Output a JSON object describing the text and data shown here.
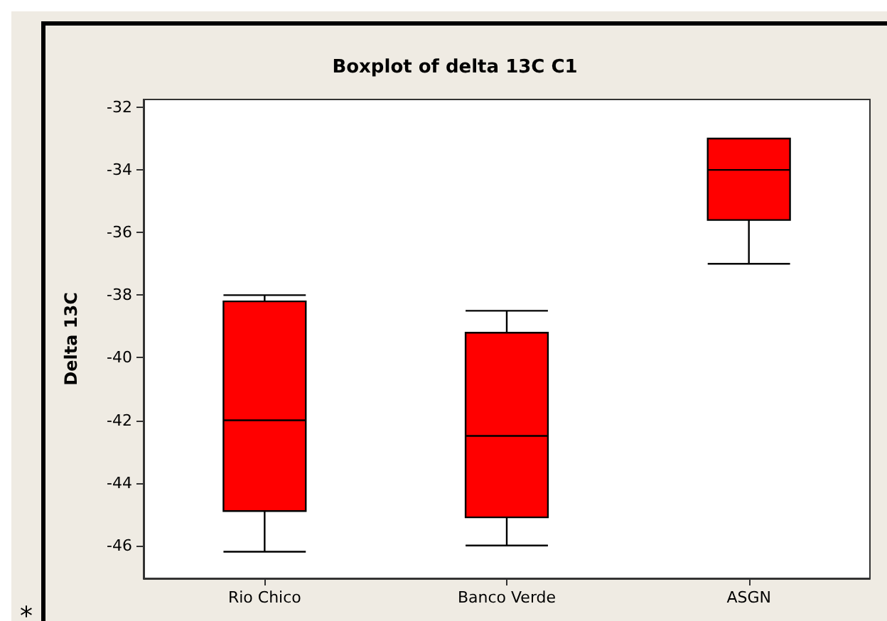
{
  "chart_data": {
    "type": "box",
    "title": "Boxplot of delta 13C C1",
    "ylabel": "Delta 13C",
    "categories": [
      "Rio Chico",
      "Banco Verde",
      "ASGN"
    ],
    "color": "#ff0000",
    "boxes": [
      {
        "low": -46.2,
        "q1": -44.9,
        "median": -42,
        "q3": -38.2,
        "high": -38
      },
      {
        "low": -46,
        "q1": -45.1,
        "median": -42.5,
        "q3": -39.2,
        "high": -38.5
      },
      {
        "low": -37,
        "q1": -35.6,
        "median": -34,
        "q3": -33,
        "high": -33
      }
    ],
    "ylim": [
      -47.05,
      -31.75
    ],
    "yticks": [
      -46,
      -44,
      -42,
      -40,
      -38,
      -36,
      -34,
      -32
    ],
    "grid": false,
    "annotations": [
      "*"
    ]
  }
}
